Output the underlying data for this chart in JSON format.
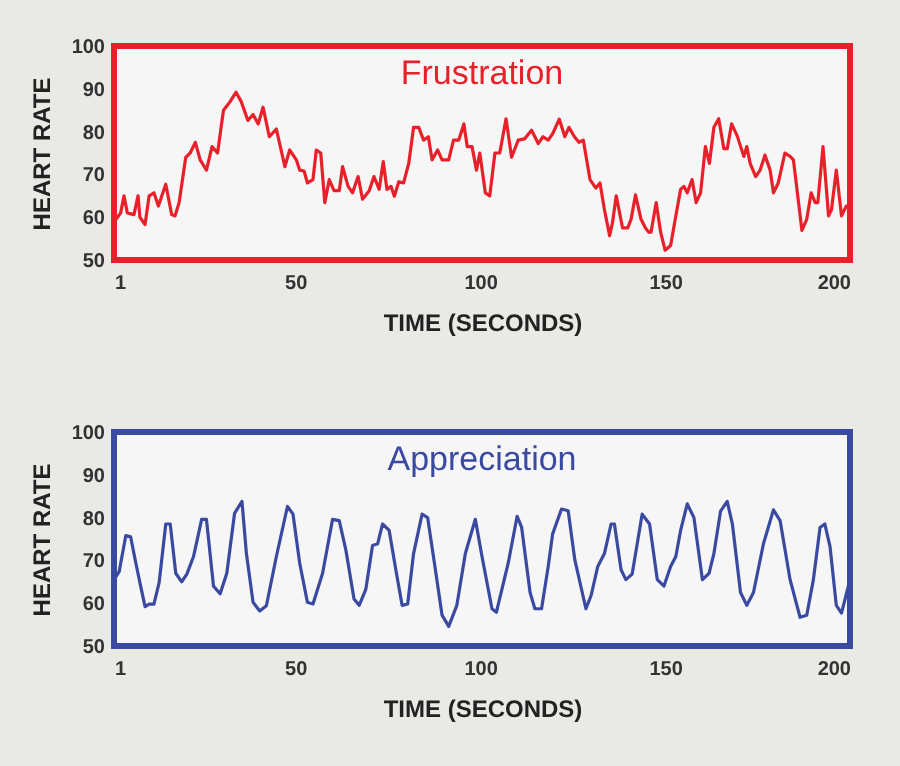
{
  "chart_data": [
    {
      "type": "line",
      "title": "Frustration",
      "xlabel": "TIME (SECONDS)",
      "ylabel": "HEART RATE",
      "xlim": [
        1,
        200
      ],
      "xticks": [
        1,
        50,
        100,
        150,
        200
      ],
      "ylim": [
        50,
        100
      ],
      "yticks": [
        50,
        60,
        70,
        80,
        90,
        100
      ],
      "series": [
        {
          "color": "#e8202a",
          "x": [
            1,
            2.8,
            3.7,
            4.6,
            6.4,
            7.5,
            8,
            9.4,
            10.5,
            11.8,
            13,
            15,
            16.6,
            17.5,
            18.6,
            20.4,
            21.6,
            23,
            24.3,
            26,
            27.5,
            29,
            30.6,
            32.4,
            34,
            35.4,
            37.2,
            38.6,
            40,
            41.3,
            43,
            44.9,
            47.2,
            48.5,
            50.3,
            51.2,
            52.4,
            53.3,
            54.8,
            55.7,
            56.9,
            58,
            59.2,
            60.5,
            61.9,
            62.8,
            64.3,
            65.5,
            67,
            68.2,
            70,
            71.3,
            72.7,
            73.8,
            74.8,
            75.9,
            76.8,
            78,
            79.3,
            80.7,
            82,
            83.4,
            84.7,
            86,
            87,
            88.5,
            89.7,
            91.5,
            92.8,
            94.2,
            95.6,
            96.5,
            97.8,
            99,
            99.9,
            101.4,
            102.6,
            104,
            105.3,
            107,
            108.5,
            110.3,
            112,
            113.9,
            115.7,
            117,
            118.4,
            119.6,
            121.4,
            122.9,
            124,
            125.5,
            126.7,
            127.9,
            129.7,
            131.3,
            132.4,
            133.6,
            135,
            135.8,
            136.8,
            138.5,
            139.9,
            140.8,
            142,
            143.5,
            144.7,
            145.6,
            146.2,
            147.6,
            148.8,
            150,
            151.5,
            152.9,
            154.2,
            155.1,
            156,
            157.3,
            158.4,
            159.6,
            160.9,
            162,
            163.2,
            164.5,
            165.9,
            166.8,
            168,
            169.5,
            171.3,
            172.1,
            173,
            174.5,
            175.7,
            177,
            178.4,
            179.3,
            180.6,
            182.4,
            183.8,
            184.7,
            187,
            188.3,
            189.5,
            190.6,
            191.3,
            192.7,
            194.2,
            195,
            196.3,
            197.7,
            199,
            200
          ],
          "values": [
            58.8,
            61,
            65,
            61,
            60.6,
            65,
            60,
            58.3,
            65,
            65.7,
            62.6,
            67.7,
            60.6,
            60.3,
            63.4,
            74,
            75,
            77.5,
            73.4,
            71,
            76.5,
            75,
            85,
            87,
            89.2,
            87,
            82.6,
            84,
            81.8,
            85.7,
            78.8,
            80.6,
            71.8,
            75.7,
            73.4,
            71,
            70.8,
            68,
            68.8,
            75.7,
            75,
            63.4,
            68.8,
            66.2,
            66.2,
            71.8,
            67.2,
            65.7,
            69.5,
            64.2,
            66.2,
            69.5,
            66.5,
            73,
            66.5,
            67.2,
            64.9,
            68.3,
            68,
            72.6,
            81,
            81,
            78,
            78.8,
            73.4,
            75.7,
            73.4,
            73.4,
            78,
            78,
            81.8,
            76.5,
            76.5,
            71,
            75,
            65.7,
            65,
            75,
            75,
            83,
            74,
            78,
            78.3,
            80.3,
            77.2,
            78.8,
            78,
            79.5,
            82.9,
            78.8,
            81,
            78.8,
            77.5,
            78,
            68.8,
            66.8,
            68,
            61.8,
            55.7,
            58.8,
            65,
            57.5,
            57.5,
            59.5,
            65.2,
            59.5,
            57.5,
            56.5,
            56.5,
            63.4,
            56.5,
            52.3,
            53.4,
            60.3,
            66.5,
            67.2,
            65.7,
            68.8,
            63.4,
            65.7,
            76.5,
            72.6,
            81,
            83,
            76,
            76,
            81.8,
            79,
            74.2,
            76.5,
            72.6,
            69.5,
            71,
            74.5,
            71,
            65.7,
            68,
            75,
            74.2,
            73.4,
            56.9,
            59.5,
            65.7,
            63.4,
            63.4,
            76.5,
            60.3,
            61.8,
            71,
            60.3,
            62.6,
            62.6
          ]
        }
      ]
    },
    {
      "type": "line",
      "title": "Appreciation",
      "xlabel": "TIME (SECONDS)",
      "ylabel": "HEART RATE",
      "xlim": [
        1,
        200
      ],
      "xticks": [
        1,
        50,
        100,
        150,
        200
      ],
      "ylim": [
        50,
        100
      ],
      "yticks": [
        50,
        60,
        70,
        80,
        90,
        100
      ],
      "series": [
        {
          "color": "#3a4aa0",
          "x": [
            1,
            2.4,
            4.2,
            5.5,
            6.9,
            8.2,
            9.4,
            10.5,
            11.8,
            13.2,
            15,
            16.2,
            17.7,
            19.3,
            20.7,
            22.5,
            24.7,
            26,
            27.9,
            29.7,
            31.5,
            33.6,
            35.6,
            36.8,
            38.6,
            40.4,
            42.2,
            44.9,
            47.9,
            49.4,
            51.2,
            53.3,
            54.8,
            57.4,
            60.1,
            61.9,
            63.7,
            65.9,
            67.3,
            69.1,
            70.9,
            72.3,
            73.6,
            75.4,
            77.2,
            78.9,
            80.4,
            82,
            84.3,
            85.8,
            87.9,
            89.7,
            91.5,
            93.7,
            96,
            98.7,
            100.5,
            103.2,
            104.4,
            107.6,
            110,
            111.2,
            113.5,
            114.8,
            116.6,
            118.4,
            119.6,
            122,
            123.8,
            125.6,
            128.6,
            130,
            131.8,
            133.6,
            135.4,
            136.3,
            138.1,
            139.4,
            141.1,
            143.8,
            145.8,
            147.9,
            149.7,
            151.5,
            152.9,
            154.2,
            156,
            157.8,
            160.1,
            161.9,
            163.2,
            165,
            166.8,
            168.2,
            170.4,
            172.1,
            173.9,
            176.6,
            179.3,
            181.1,
            183.8,
            186.5,
            188.3,
            190.1,
            191.9,
            193.2,
            194.6,
            196.3,
            197.7,
            200
          ],
          "values": [
            65.5,
            67.4,
            75.8,
            75.5,
            69.4,
            64,
            59.2,
            59.8,
            59.8,
            64.8,
            78.5,
            78.5,
            67,
            65,
            66.8,
            70.9,
            79.6,
            79.6,
            64,
            62.2,
            67,
            81,
            83.8,
            71.6,
            60.2,
            58.2,
            59.4,
            70.9,
            82.6,
            80.8,
            69.4,
            60.2,
            59.8,
            67,
            79.6,
            79.3,
            72.4,
            61,
            59.5,
            63.3,
            73.5,
            73.9,
            78.5,
            77,
            67.8,
            59.5,
            59.8,
            71.6,
            80.8,
            80,
            67.8,
            57.2,
            54.6,
            59.5,
            71.6,
            79.6,
            70.9,
            58.7,
            57.9,
            69.4,
            80.3,
            77.8,
            62.5,
            58.7,
            58.7,
            68.6,
            76.2,
            82,
            81.6,
            70.1,
            58.7,
            61.8,
            68.6,
            71.6,
            78.5,
            78.5,
            67.8,
            65.5,
            66.8,
            80.8,
            78.5,
            65.5,
            64,
            68.6,
            70.9,
            77,
            83.2,
            80,
            65.5,
            67,
            71.6,
            81.5,
            83.8,
            78.5,
            62.5,
            59.5,
            62.5,
            73.9,
            81.8,
            79.3,
            65.5,
            56.7,
            57.2,
            65.5,
            77.7,
            78.5,
            73.2,
            59.5,
            57.7,
            65.5
          ]
        }
      ]
    }
  ]
}
